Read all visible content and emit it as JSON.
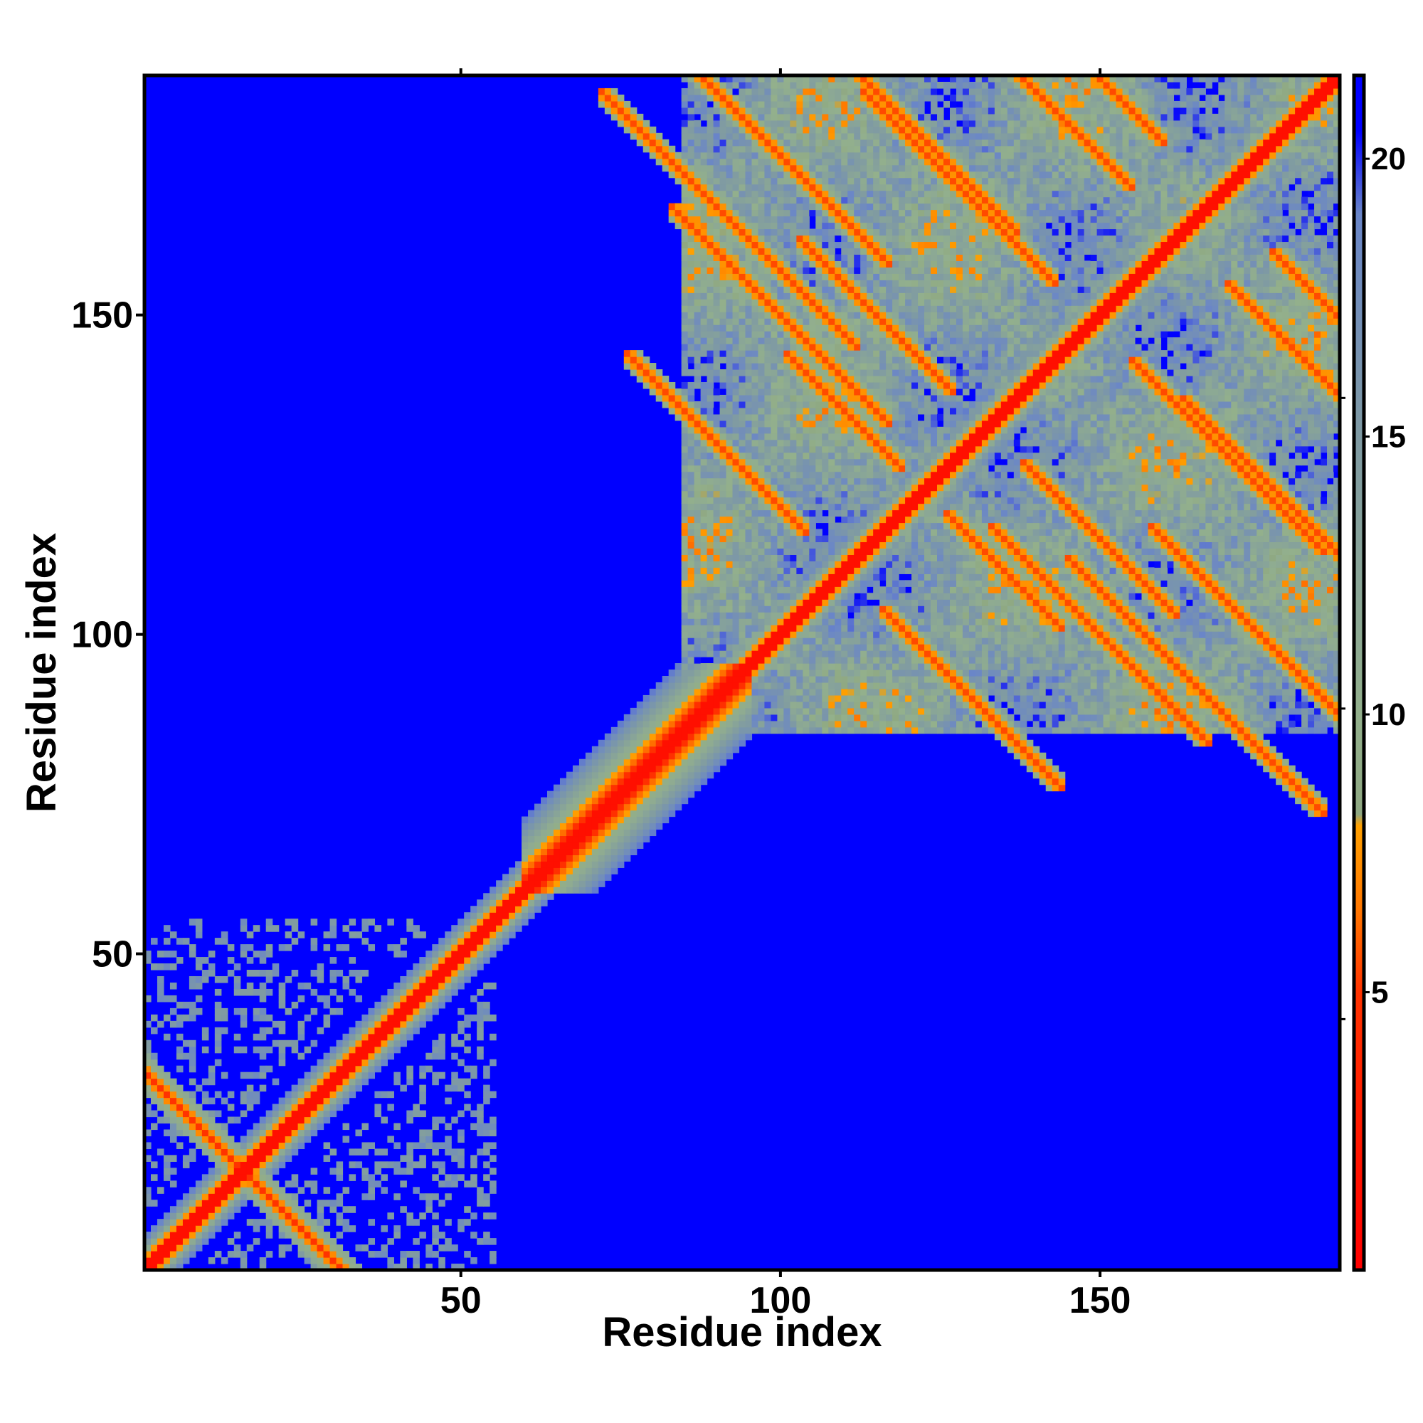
{
  "chart_data": {
    "type": "heatmap",
    "title": "",
    "xlabel": "Residue index",
    "ylabel": "Residue index",
    "n_residues": 187,
    "xlim": [
      1,
      187
    ],
    "ylim": [
      1,
      187
    ],
    "xticks": [
      50,
      100,
      150
    ],
    "xtick_labels": [
      "50",
      "100",
      "150"
    ],
    "yticks": [
      50,
      100,
      150
    ],
    "ytick_labels": [
      "50",
      "100",
      "150"
    ],
    "colorbar": {
      "position": "right",
      "range": [
        0,
        21.5
      ],
      "ticks": [
        5,
        10,
        15,
        20
      ],
      "tick_labels": [
        "5",
        "10",
        "15",
        "20"
      ],
      "stops": [
        {
          "value": 0,
          "color": "#ff0000"
        },
        {
          "value": 5,
          "color": "#ff3300"
        },
        {
          "value": 6.5,
          "color": "#ff7700"
        },
        {
          "value": 8,
          "color": "#ffa000"
        },
        {
          "value": 8.2,
          "color": "#8fa882"
        },
        {
          "value": 10,
          "color": "#93b08c"
        },
        {
          "value": 15,
          "color": "#7f9aa3"
        },
        {
          "value": 19,
          "color": "#6a86c8"
        },
        {
          "value": 20.5,
          "color": "#0000ff"
        }
      ],
      "background_color": "#0000ff"
    },
    "matrix_note": "Symmetric residue-residue distance map; values outside contact regions are above 20 (blue).",
    "diagonal_band": {
      "from": 1,
      "to": 187
    },
    "contact_regions": [
      {
        "i": [
          1,
          35
        ],
        "j": [
          1,
          35
        ],
        "kind": "hairpin-cross"
      },
      {
        "i": [
          1,
          10
        ],
        "j": [
          45,
          55
        ],
        "kind": "patch"
      },
      {
        "i": [
          20,
          28
        ],
        "j": [
          45,
          55
        ],
        "kind": "patch"
      },
      {
        "i": [
          38,
          55
        ],
        "j": [
          10,
          50
        ],
        "kind": "patch"
      },
      {
        "i": [
          40,
          55
        ],
        "j": [
          1,
          10
        ],
        "kind": "patch"
      },
      {
        "i": [
          50,
          55
        ],
        "j": [
          20,
          25
        ],
        "kind": "patch"
      },
      {
        "i": [
          60,
          95
        ],
        "j": [
          60,
          95
        ],
        "kind": "helix-band"
      },
      {
        "i": [
          85,
          105
        ],
        "j": [
          125,
          185
        ],
        "kind": "beta-sheet"
      },
      {
        "i": [
          105,
          130
        ],
        "j": [
          90,
          185
        ],
        "kind": "beta-sheet"
      },
      {
        "i": [
          135,
          155
        ],
        "j": [
          85,
          185
        ],
        "kind": "beta-sheet"
      },
      {
        "i": [
          155,
          187
        ],
        "j": [
          85,
          185
        ],
        "kind": "beta-sheet"
      }
    ]
  }
}
